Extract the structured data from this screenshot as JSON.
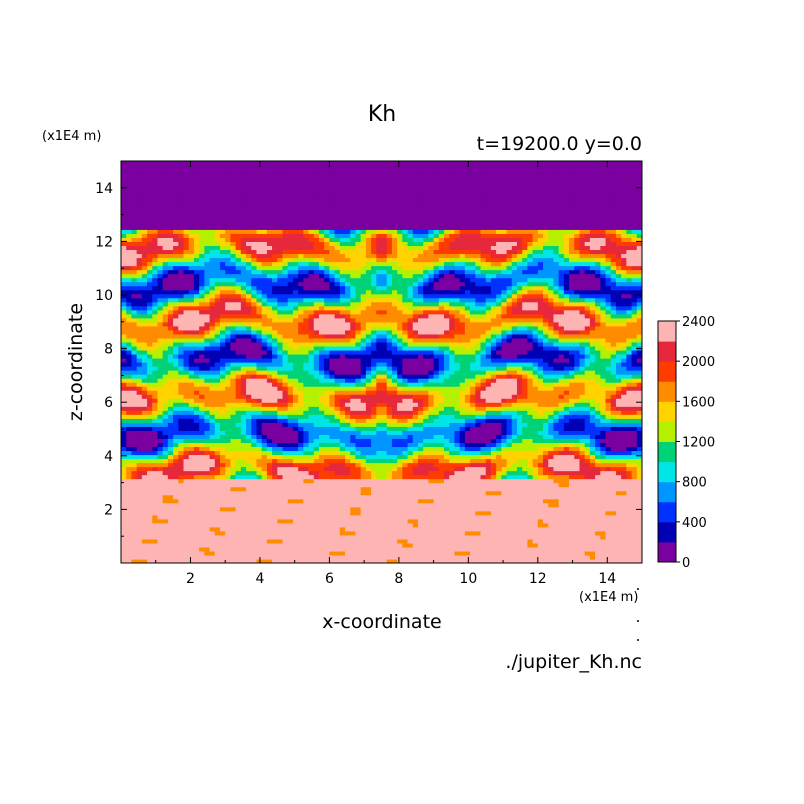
{
  "chart_data": {
    "type": "heatmap",
    "title": "Kh",
    "subtitle": "t=19200.0 y=0.0",
    "xlabel": "x-coordinate",
    "ylabel": "z-coordinate",
    "x_unit": "(x1E4 m)",
    "y_unit": "(x1E4 m)",
    "xlim": [
      0,
      15
    ],
    "ylim": [
      0,
      15
    ],
    "x_ticks": [
      2,
      4,
      6,
      8,
      10,
      12,
      14
    ],
    "y_ticks": [
      2,
      4,
      6,
      8,
      10,
      12,
      14
    ],
    "x_tick_labels": [
      "2",
      "4",
      "6",
      "8",
      "10",
      "12",
      "14"
    ],
    "y_tick_labels": [
      "2",
      "4",
      "6",
      "8",
      "10",
      "12",
      "14"
    ],
    "grid": false,
    "colorbar": {
      "placement": "right",
      "min": 0,
      "max": 2400,
      "tick_values": [
        0,
        400,
        800,
        1200,
        1600,
        2000,
        2400
      ],
      "tick_labels": [
        "0",
        "400",
        "800",
        "1200",
        "1600",
        "2000",
        "2400"
      ],
      "levels": [
        0,
        200,
        400,
        600,
        800,
        1000,
        1200,
        1400,
        1600,
        1800,
        2000,
        2200,
        2400
      ],
      "colors": [
        "#7a00a0",
        "#0000b4",
        "#0032ff",
        "#0096ff",
        "#00e6e6",
        "#00d278",
        "#b4f000",
        "#ffd200",
        "#ff8c00",
        "#ff3c00",
        "#e6283c",
        "#ffb4b4"
      ]
    },
    "field_description": {
      "upper_band_z": [
        12.4,
        15
      ],
      "upper_band_value": 0,
      "lower_band_z": [
        0,
        3.2
      ],
      "lower_band_value": 2400,
      "symmetry_axis_x": 7.5
    },
    "footer": "./jupiter_Kh.nc"
  }
}
